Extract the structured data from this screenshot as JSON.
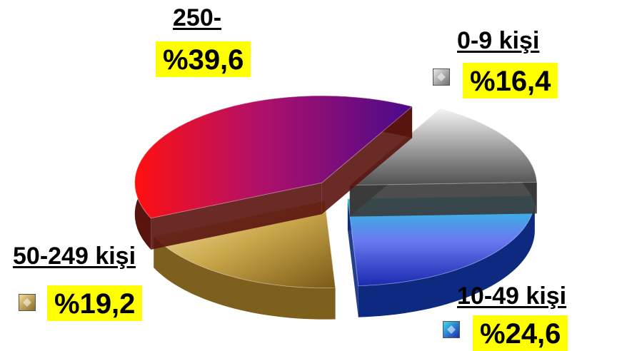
{
  "chart_data": {
    "type": "pie",
    "title": "",
    "categories": [
      "250-",
      "0-9 kişi",
      "10-49 kişi",
      "50-249 kişi"
    ],
    "values": [
      39.6,
      16.4,
      24.6,
      19.2
    ],
    "value_labels": [
      "%39,6",
      "%16,4",
      "%24,6",
      "%19,2"
    ],
    "colors": [
      "#8a0fb0",
      "#a8a8a8",
      "#1e4fd8",
      "#c9a64a"
    ],
    "exploded": true,
    "legend": "labels-around"
  }
}
